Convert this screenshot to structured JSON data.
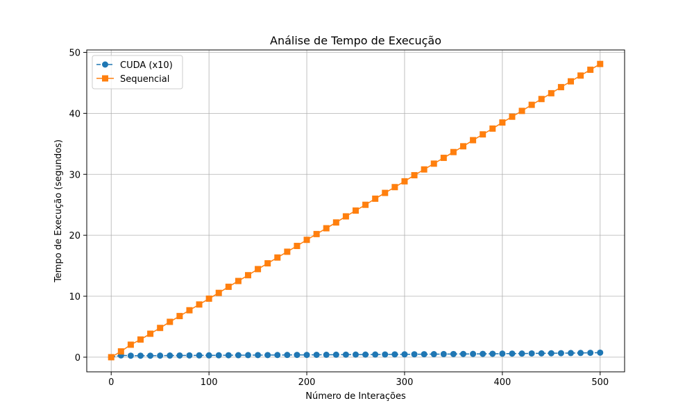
{
  "chart_data": {
    "type": "line",
    "title": "Análise de Tempo de Execução",
    "xlabel": "Número de Interações",
    "ylabel": "Tempo de Execução (segundos)",
    "xlim": [
      -25,
      525
    ],
    "ylim": [
      -2.4,
      50.4
    ],
    "xticks": [
      0,
      100,
      200,
      300,
      400,
      500
    ],
    "yticks": [
      0,
      10,
      20,
      30,
      40,
      50
    ],
    "grid": true,
    "legend_position": "top-left",
    "x": [
      0,
      10,
      20,
      30,
      40,
      50,
      60,
      70,
      80,
      90,
      100,
      110,
      120,
      130,
      140,
      150,
      160,
      170,
      180,
      190,
      200,
      210,
      220,
      230,
      240,
      250,
      260,
      270,
      280,
      290,
      300,
      310,
      320,
      330,
      340,
      350,
      360,
      370,
      380,
      390,
      400,
      410,
      420,
      430,
      440,
      450,
      460,
      470,
      480,
      490,
      500
    ],
    "series": [
      {
        "name": "CUDA (x10)",
        "color": "#1f77b4",
        "line_style": "dashed",
        "marker": "circle",
        "values": [
          0.0,
          0.3,
          0.25,
          0.25,
          0.25,
          0.26,
          0.27,
          0.28,
          0.29,
          0.3,
          0.3,
          0.31,
          0.32,
          0.33,
          0.34,
          0.35,
          0.35,
          0.36,
          0.37,
          0.38,
          0.38,
          0.39,
          0.4,
          0.41,
          0.42,
          0.43,
          0.43,
          0.44,
          0.45,
          0.46,
          0.47,
          0.48,
          0.49,
          0.5,
          0.51,
          0.52,
          0.53,
          0.54,
          0.55,
          0.56,
          0.58,
          0.59,
          0.6,
          0.62,
          0.63,
          0.65,
          0.66,
          0.68,
          0.7,
          0.72,
          0.75
        ]
      },
      {
        "name": "Sequencial",
        "color": "#ff7f0e",
        "line_style": "solid",
        "marker": "square",
        "values": [
          0.0,
          0.95,
          2.05,
          2.9,
          3.85,
          4.8,
          5.8,
          6.75,
          7.7,
          8.65,
          9.6,
          10.55,
          11.55,
          12.5,
          13.45,
          14.45,
          15.4,
          16.35,
          17.3,
          18.25,
          19.25,
          20.2,
          21.15,
          22.1,
          23.1,
          24.05,
          25.0,
          26.0,
          26.95,
          27.9,
          28.85,
          29.85,
          30.8,
          31.75,
          32.7,
          33.65,
          34.6,
          35.6,
          36.55,
          37.5,
          38.5,
          39.45,
          40.4,
          41.4,
          42.35,
          43.3,
          44.3,
          45.25,
          46.2,
          47.15,
          48.1
        ]
      }
    ]
  }
}
